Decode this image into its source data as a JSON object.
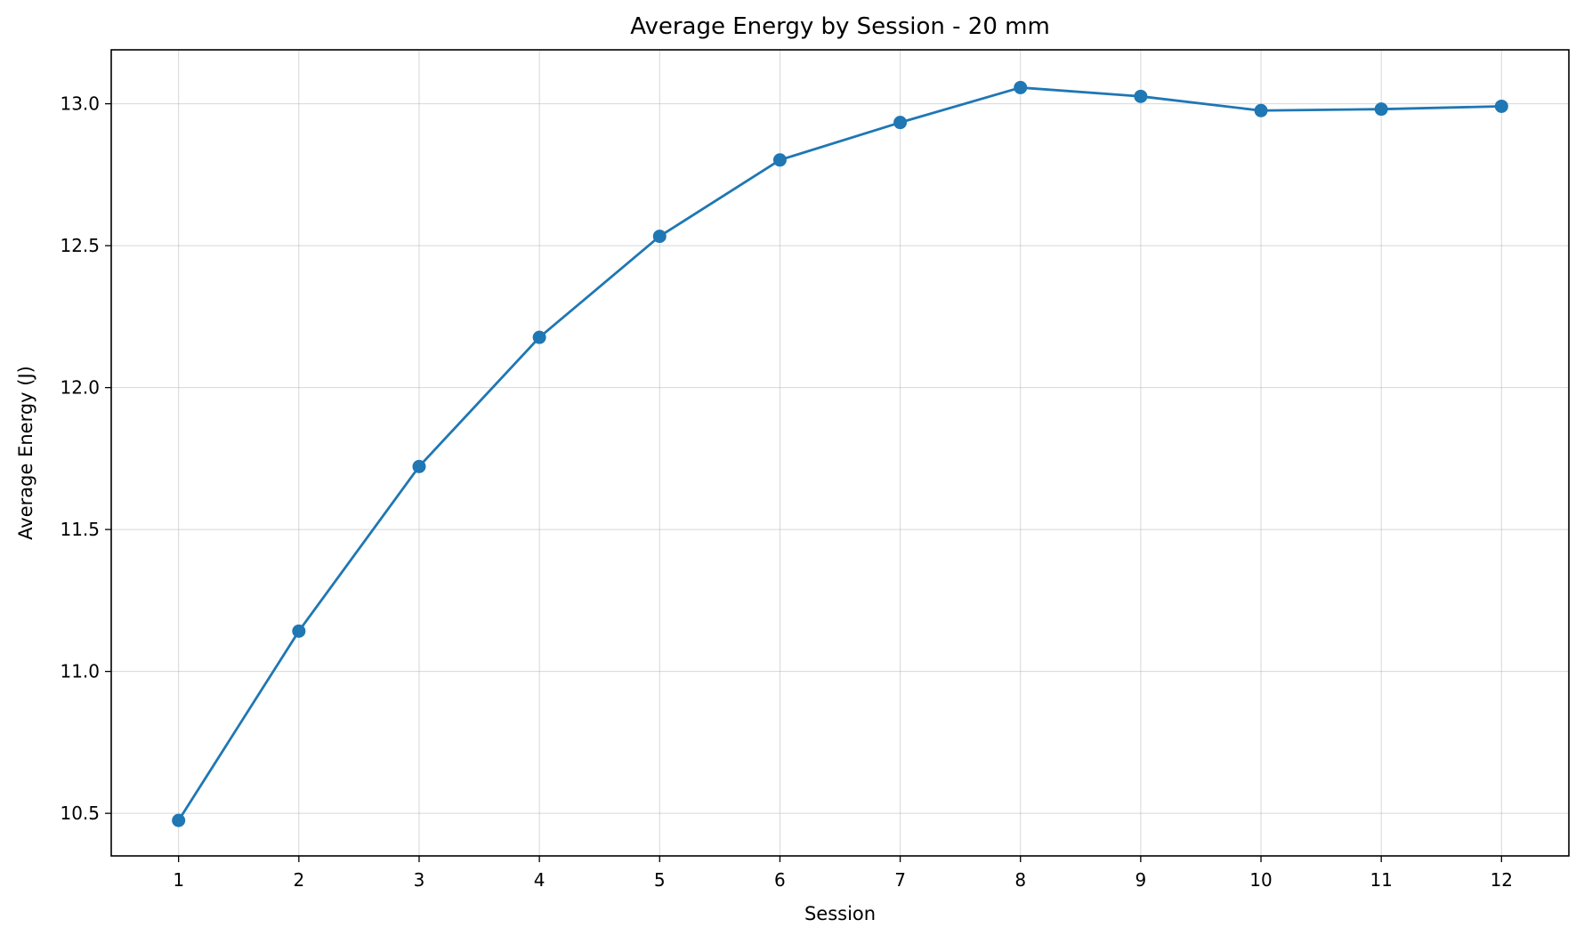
{
  "chart_data": {
    "type": "line",
    "title": "Average Energy by Session - 20 mm",
    "xlabel": "Session",
    "ylabel": "Average Energy (J)",
    "x": [
      1,
      2,
      3,
      4,
      5,
      6,
      7,
      8,
      9,
      10,
      11,
      12
    ],
    "x_tick_labels": [
      "1",
      "2",
      "3",
      "4",
      "5",
      "6",
      "7",
      "8",
      "9",
      "10",
      "11",
      "12"
    ],
    "y_ticks": [
      10.5,
      11.0,
      11.5,
      12.0,
      12.5,
      13.0
    ],
    "y_tick_labels": [
      "10.5",
      "11.0",
      "11.5",
      "12.0",
      "12.5",
      "13.0"
    ],
    "xlim": [
      0.44,
      12.56
    ],
    "ylim": [
      10.35,
      13.19
    ],
    "grid": true,
    "legend": "none",
    "series": [
      {
        "values": [
          10.475,
          11.142,
          11.722,
          12.177,
          12.533,
          12.802,
          12.934,
          13.057,
          13.026,
          12.976,
          12.981,
          12.991
        ],
        "color": "#1f77b4",
        "marker": "circle"
      }
    ]
  }
}
